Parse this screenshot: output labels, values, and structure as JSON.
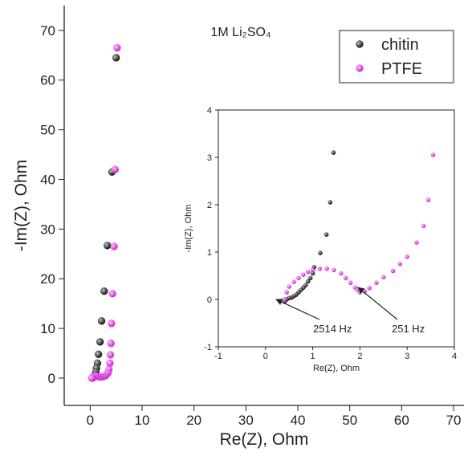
{
  "chart_data": [
    {
      "type": "scatter",
      "title": "1M Li₂SO₄",
      "x_label": "Re(Z), Ohm",
      "y_label": "-Im(Z), Ohm",
      "xlim": [
        -5,
        72
      ],
      "ylim": [
        -5.5,
        75
      ],
      "xticks": [
        0,
        10,
        20,
        30,
        40,
        50,
        60,
        70
      ],
      "yticks": [
        0,
        10,
        20,
        30,
        40,
        50,
        60,
        70
      ],
      "legend": "upper right",
      "series": [
        {
          "name": "chitin",
          "color": "#111111",
          "x": [
            5,
            4.2,
            3.3,
            2.7,
            2.2,
            1.9,
            1.6,
            1.4,
            1.2,
            1.1,
            0.9,
            0.7,
            0.5,
            0.4
          ],
          "y": [
            64.5,
            41.5,
            26.7,
            17.5,
            11.5,
            7.3,
            4.8,
            3.0,
            2.0,
            1.2,
            0.6,
            0.3,
            0.1,
            0
          ]
        },
        {
          "name": "PTFE",
          "color": "#e040e0",
          "x": [
            5.2,
            4.8,
            4.6,
            4.3,
            4.1,
            4,
            3.9,
            3.8,
            3.6,
            3.4,
            3,
            2.5,
            2,
            1.5,
            1,
            0.5,
            0.3
          ],
          "y": [
            66.5,
            42,
            26.5,
            17,
            11,
            7,
            4.7,
            3,
            1.7,
            1,
            0.5,
            0.3,
            0.2,
            0.3,
            0.4,
            0.2,
            0
          ]
        }
      ]
    },
    {
      "type": "scatter",
      "x_label": "Re(Z), Ohm",
      "y_label": "-Im(Z), Ohm",
      "xlim": [
        -1,
        4
      ],
      "ylim": [
        -1,
        4
      ],
      "xticks": [
        -1,
        0,
        1,
        2,
        3,
        4
      ],
      "yticks": [
        -1,
        0,
        1,
        2,
        3,
        4
      ],
      "annotations": [
        "2514 Hz",
        "251 Hz"
      ],
      "series": [
        {
          "name": "chitin",
          "color": "#111111",
          "x": [
            1.44,
            1.37,
            1.29,
            1.16,
            1.03,
            1.0,
            0.95,
            0.9,
            0.85,
            0.8,
            0.75,
            0.7,
            0.65,
            0.6,
            0.55,
            0.5,
            0.45,
            0.4
          ],
          "y": [
            3.1,
            2.05,
            1.37,
            0.98,
            0.68,
            0.55,
            0.45,
            0.38,
            0.3,
            0.25,
            0.2,
            0.15,
            0.1,
            0.07,
            0.04,
            0.03,
            0.0,
            -0.05
          ]
        },
        {
          "name": "PTFE",
          "color": "#e040e0",
          "x": [
            0.4,
            0.45,
            0.5,
            0.6,
            0.7,
            0.8,
            0.9,
            1.0,
            1.15,
            1.3,
            1.45,
            1.6,
            1.7,
            1.8,
            1.9,
            1.95,
            2.0,
            2.1,
            2.2,
            2.35,
            2.5,
            2.7,
            2.85,
            3.0,
            3.2,
            3.35,
            3.45,
            3.55
          ],
          "y": [
            0,
            0.15,
            0.27,
            0.37,
            0.45,
            0.52,
            0.58,
            0.62,
            0.65,
            0.65,
            0.62,
            0.55,
            0.45,
            0.35,
            0.25,
            0.2,
            0.15,
            0.17,
            0.24,
            0.35,
            0.47,
            0.6,
            0.75,
            0.9,
            1.2,
            1.55,
            2.1,
            3.05
          ]
        }
      ]
    }
  ]
}
